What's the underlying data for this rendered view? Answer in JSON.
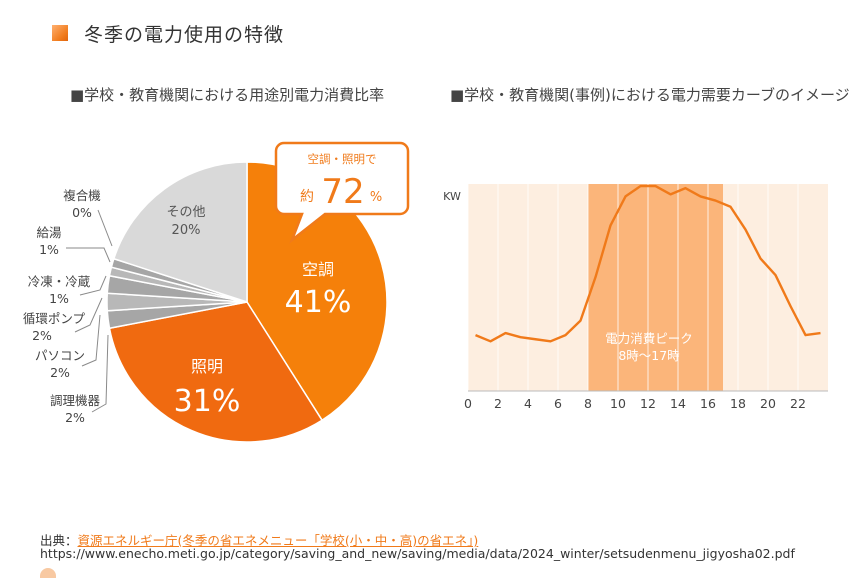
{
  "page": {
    "title": "冬季の電力使用の特徴",
    "left_subtitle": "■学校・教育機関における用途別電力消費比率",
    "right_subtitle": "■学校・教育機関(事例)における電力需要カーブのイメージ"
  },
  "colors": {
    "accent": "#f07a1a",
    "aircon": "#f5800a",
    "lighting": "#f06a10",
    "other": "#d9d9d9",
    "small": "#a6a6a6",
    "peak_band": "#fbb57a",
    "chart_bg": "#fdeee0"
  },
  "chart_data": [
    {
      "type": "pie",
      "title": "学校・教育機関における用途別電力消費比率",
      "slices": [
        {
          "label": "空調",
          "value": 41,
          "value_label": "41%"
        },
        {
          "label": "照明",
          "value": 31,
          "value_label": "31%"
        },
        {
          "label": "調理機器",
          "value": 2,
          "value_label": "2%"
        },
        {
          "label": "パソコン",
          "value": 2,
          "value_label": "2%"
        },
        {
          "label": "循環ポンプ",
          "value": 2,
          "value_label": "2%"
        },
        {
          "label": "冷凍・冷蔵",
          "value": 1,
          "value_label": "1%"
        },
        {
          "label": "給湯",
          "value": 1,
          "value_label": "1%"
        },
        {
          "label": "複合機",
          "value": 0,
          "value_label": "0%"
        },
        {
          "label": "その他",
          "value": 20,
          "value_label": "20%"
        }
      ],
      "callout": {
        "line1": "空調・照明で",
        "prefix": "約",
        "number": "72",
        "unit": "%"
      }
    },
    {
      "type": "line",
      "title": "学校・教育機関(事例)における電力需要カーブのイメージ",
      "ylabel": "KW",
      "xlim": [
        0,
        24
      ],
      "ylim": [
        0,
        100
      ],
      "x_ticks": [
        "0",
        "2",
        "4",
        "6",
        "8",
        "10",
        "12",
        "14",
        "16",
        "18",
        "20",
        "22"
      ],
      "x": [
        0,
        1,
        2,
        3,
        4,
        5,
        6,
        7,
        8,
        9,
        10,
        11,
        12,
        13,
        14,
        15,
        16,
        17,
        18,
        19,
        20,
        21,
        22,
        23
      ],
      "values": [
        27,
        24,
        28,
        26,
        25,
        24,
        27,
        34,
        55,
        80,
        94,
        99,
        99,
        95,
        98,
        94,
        92,
        89,
        78,
        64,
        56,
        41,
        27,
        28
      ],
      "peak_band": {
        "start": 8,
        "end": 17,
        "line1": "電力消費ピーク",
        "line2": "8時～17時"
      }
    }
  ],
  "source": {
    "label": "出典：",
    "link_text": "資源エネルギー庁(冬季の省エネメニュー「学校(小・中・高)の省エネ」)",
    "url": "https://www.enecho.meti.go.jp/category/saving_and_new/saving/media/data/2024_winter/setsudenmenu_jigyosha02.pdf"
  }
}
